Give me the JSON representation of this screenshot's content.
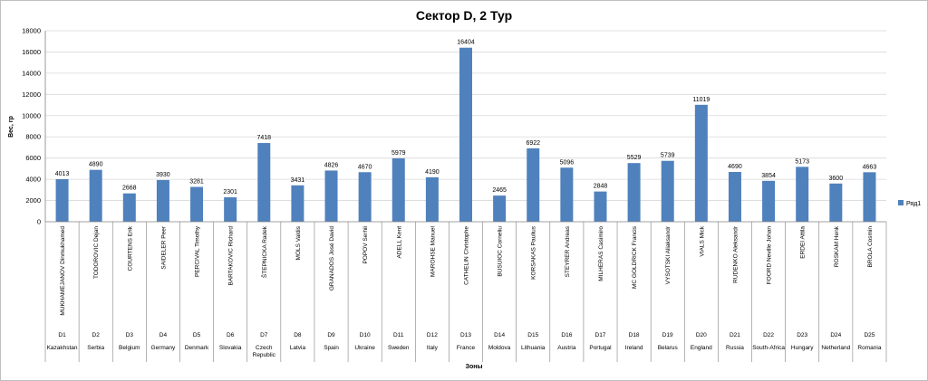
{
  "chart_data": {
    "type": "bar",
    "title": "Сектор D, 2 Тур",
    "xlabel": "Зоны",
    "ylabel": "Вес, гр",
    "ylim": [
      0,
      18000
    ],
    "yticks": [
      0,
      2000,
      4000,
      6000,
      8000,
      10000,
      12000,
      14000,
      16000,
      18000
    ],
    "grid": true,
    "legend_position": "right",
    "bar_color": "#4f81bd",
    "categories": [
      {
        "name": "MUKHAMEJANOV Dinmukhamed",
        "zone": "D1",
        "country": "Kazakhstan"
      },
      {
        "name": "TODOROVIC Dejan",
        "zone": "D2",
        "country": "Serbia"
      },
      {
        "name": "COURTENS Erik",
        "zone": "D3",
        "country": "Belgium"
      },
      {
        "name": "SAIDELER Peer",
        "zone": "D4",
        "country": "Germany"
      },
      {
        "name": "PERCIVAL Timothy",
        "zone": "D5",
        "country": "Denmark"
      },
      {
        "name": "BARTAKOVIC Richard",
        "zone": "D6",
        "country": "Slovakia"
      },
      {
        "name": "ŠTEPNICKA Radek",
        "zone": "D7",
        "country": "Czech Republic"
      },
      {
        "name": "MOLS Valdis",
        "zone": "D8",
        "country": "Latvia"
      },
      {
        "name": "GRANADOS José David",
        "zone": "D9",
        "country": "Spain"
      },
      {
        "name": "POPOV Serhii",
        "zone": "D10",
        "country": "Ukraine"
      },
      {
        "name": "ADELL Kent",
        "zone": "D11",
        "country": "Sweden"
      },
      {
        "name": "MAROHSE Manuel",
        "zone": "D12",
        "country": "Italy"
      },
      {
        "name": "CATHELIN Christophe",
        "zone": "D13",
        "country": "France"
      },
      {
        "name": "BUSUIOC Corneliu",
        "zone": "D14",
        "country": "Moldova"
      },
      {
        "name": "KORSAKAS Paulius",
        "zone": "D15",
        "country": "Lithuania"
      },
      {
        "name": "STEYRER Andreas",
        "zone": "D16",
        "country": "Austria"
      },
      {
        "name": "MILHERAS Casimiro",
        "zone": "D17",
        "country": "Portugal"
      },
      {
        "name": "MC GOLDRICK Francis",
        "zone": "D18",
        "country": "Ireland"
      },
      {
        "name": "VYSOTSKI Aliaksandr",
        "zone": "D19",
        "country": "Belarus"
      },
      {
        "name": "VIALS Mick",
        "zone": "D20",
        "country": "England"
      },
      {
        "name": "RUDENKO Aleksandr",
        "zone": "D21",
        "country": "Russia"
      },
      {
        "name": "FOORD Neville Johan",
        "zone": "D22",
        "country": "South-Africa"
      },
      {
        "name": "ERDEI Attila",
        "zone": "D23",
        "country": "Hungary"
      },
      {
        "name": "ROSKAM Henk",
        "zone": "D24",
        "country": "Netherland"
      },
      {
        "name": "BROLA Cosmin",
        "zone": "D25",
        "country": "Romania"
      }
    ],
    "series": [
      {
        "name": "Ряд1",
        "values": [
          4013,
          4890,
          2668,
          3930,
          3281,
          2301,
          7418,
          3431,
          4826,
          4670,
          5979,
          4190,
          16404,
          2465,
          6922,
          5096,
          2848,
          5529,
          5739,
          11019,
          4690,
          3854,
          5173,
          3600,
          4663
        ]
      }
    ]
  }
}
